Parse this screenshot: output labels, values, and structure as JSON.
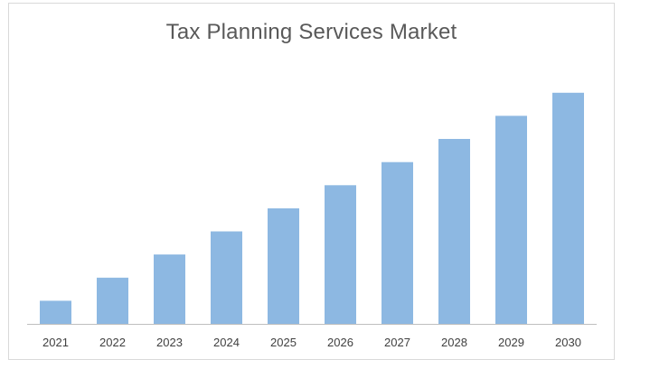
{
  "chart_data": {
    "type": "bar",
    "title": "Tax Planning Services Market",
    "categories": [
      "2021",
      "2022",
      "2023",
      "2024",
      "2025",
      "2026",
      "2027",
      "2028",
      "2029",
      "2030"
    ],
    "values": [
      1.0,
      2.0,
      3.0,
      4.0,
      5.0,
      6.0,
      7.0,
      8.0,
      9.0,
      10.0
    ],
    "xlabel": "",
    "ylabel": "",
    "ylim": [
      0,
      10.5
    ],
    "y_axis_visible": false,
    "grid": false,
    "legend": "none",
    "bar_color": "#8db8e2",
    "axis_color": "#bfbfbf"
  }
}
